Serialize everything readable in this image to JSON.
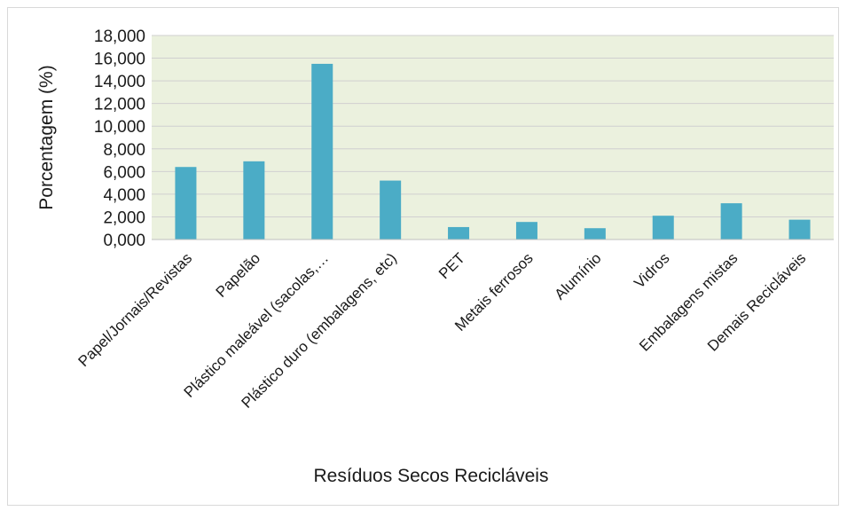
{
  "chart_data": {
    "type": "bar",
    "title": "",
    "xlabel": "Resíduos Secos Recicláveis",
    "ylabel": "Porcentagem  (%)",
    "ylim": [
      0,
      18
    ],
    "yticks": [
      "0,000",
      "2,000",
      "4,000",
      "6,000",
      "8,000",
      "10,000",
      "12,000",
      "14,000",
      "16,000",
      "18,000"
    ],
    "grid": true,
    "legend": "none",
    "categories": [
      "Papel/Jornais/Revistas",
      "Papelão",
      "Plástico maleável (sacolas,…",
      "Plástico duro (embalagens, etc)",
      "PET",
      "Metais ferrosos",
      "Alumínio",
      "Vidros",
      "Embalagens mistas",
      "Demais Recicláveis"
    ],
    "values": [
      6.4,
      6.9,
      15.5,
      5.2,
      1.1,
      1.55,
      1.0,
      2.1,
      3.2,
      1.75
    ],
    "colors": {
      "bar": "#4bacc6",
      "plot_background": "#ebf1de",
      "gridline": "#d0d0d0"
    }
  }
}
